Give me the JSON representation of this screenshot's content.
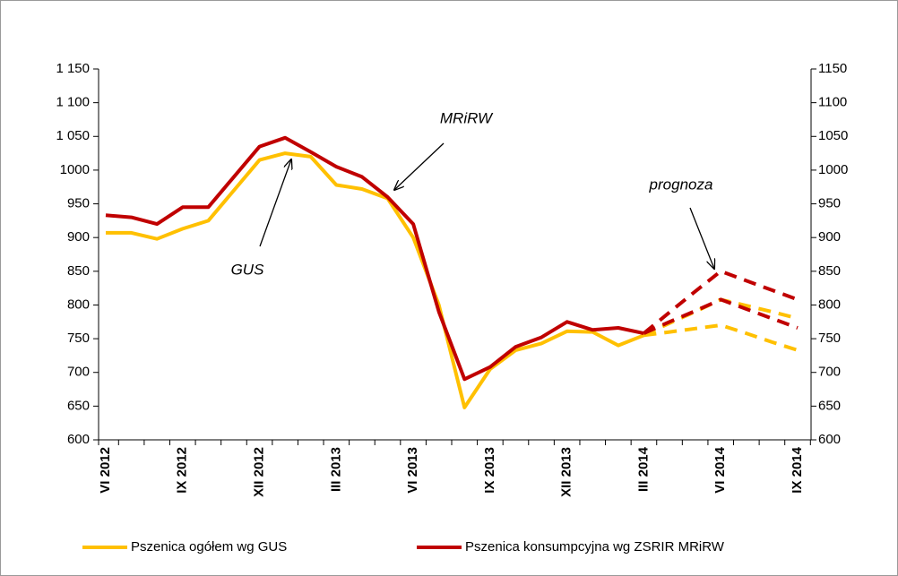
{
  "chart_data": {
    "type": "line",
    "categories": [
      "VI 2012",
      null,
      null,
      "IX 2012",
      null,
      null,
      "XII 2012",
      null,
      null,
      "III 2013",
      null,
      null,
      "VI 2013",
      null,
      null,
      "IX 2013",
      null,
      null,
      "XII 2013",
      null,
      null,
      "III 2014",
      null,
      null,
      "VI 2014",
      null,
      null,
      "IX 2014"
    ],
    "series": [
      {
        "name": "Pszenica ogółem  wg GUS",
        "color": "#ffc000",
        "values": [
          907,
          907,
          898,
          913,
          925,
          970,
          1015,
          1025,
          1020,
          978,
          972,
          958,
          900,
          800,
          648,
          705,
          733,
          743,
          761,
          760,
          740,
          755,
          null,
          null,
          null,
          null,
          null,
          null
        ],
        "forecast": [
          [
            null,
            null,
            null,
            null,
            null,
            null,
            null,
            null,
            null,
            null,
            null,
            null,
            null,
            null,
            null,
            null,
            null,
            null,
            null,
            null,
            null,
            755,
            760,
            765,
            770,
            758,
            745,
            733
          ],
          [
            null,
            null,
            null,
            null,
            null,
            null,
            null,
            null,
            null,
            null,
            null,
            null,
            null,
            null,
            null,
            null,
            null,
            null,
            null,
            null,
            null,
            755,
            773,
            790,
            808,
            799,
            790,
            780
          ]
        ]
      },
      {
        "name": "Pszenica konsumpcyjna wg  ZSRIR MRiRW",
        "color": "#c00000",
        "values": [
          933,
          930,
          920,
          945,
          945,
          990,
          1035,
          1048,
          1027,
          1005,
          990,
          960,
          920,
          790,
          690,
          708,
          738,
          752,
          775,
          763,
          766,
          758,
          null,
          null,
          null,
          null,
          null,
          null
        ],
        "forecast": [
          [
            null,
            null,
            null,
            null,
            null,
            null,
            null,
            null,
            null,
            null,
            null,
            null,
            null,
            null,
            null,
            null,
            null,
            null,
            null,
            null,
            null,
            758,
            775,
            791,
            808,
            794,
            780,
            766
          ],
          [
            null,
            null,
            null,
            null,
            null,
            null,
            null,
            null,
            null,
            null,
            null,
            null,
            null,
            null,
            null,
            null,
            null,
            null,
            null,
            null,
            null,
            758,
            789,
            820,
            850,
            836,
            822,
            808
          ]
        ]
      }
    ],
    "ylim": [
      600,
      1150
    ],
    "yticks": [
      600,
      650,
      700,
      750,
      800,
      850,
      900,
      950,
      1000,
      {
        "value": 1050,
        "label": "1 050"
      },
      {
        "value": 1100,
        "label": "1 100"
      },
      {
        "value": 1150,
        "label": "1 150"
      }
    ],
    "y2lim": [
      600,
      1150
    ],
    "y2ticks": [
      600,
      650,
      700,
      750,
      800,
      850,
      900,
      950,
      1000,
      1050,
      1100,
      1150
    ],
    "annotations": [
      "MRiRW",
      "GUS",
      "prognoza"
    ],
    "legend": "bottom"
  }
}
